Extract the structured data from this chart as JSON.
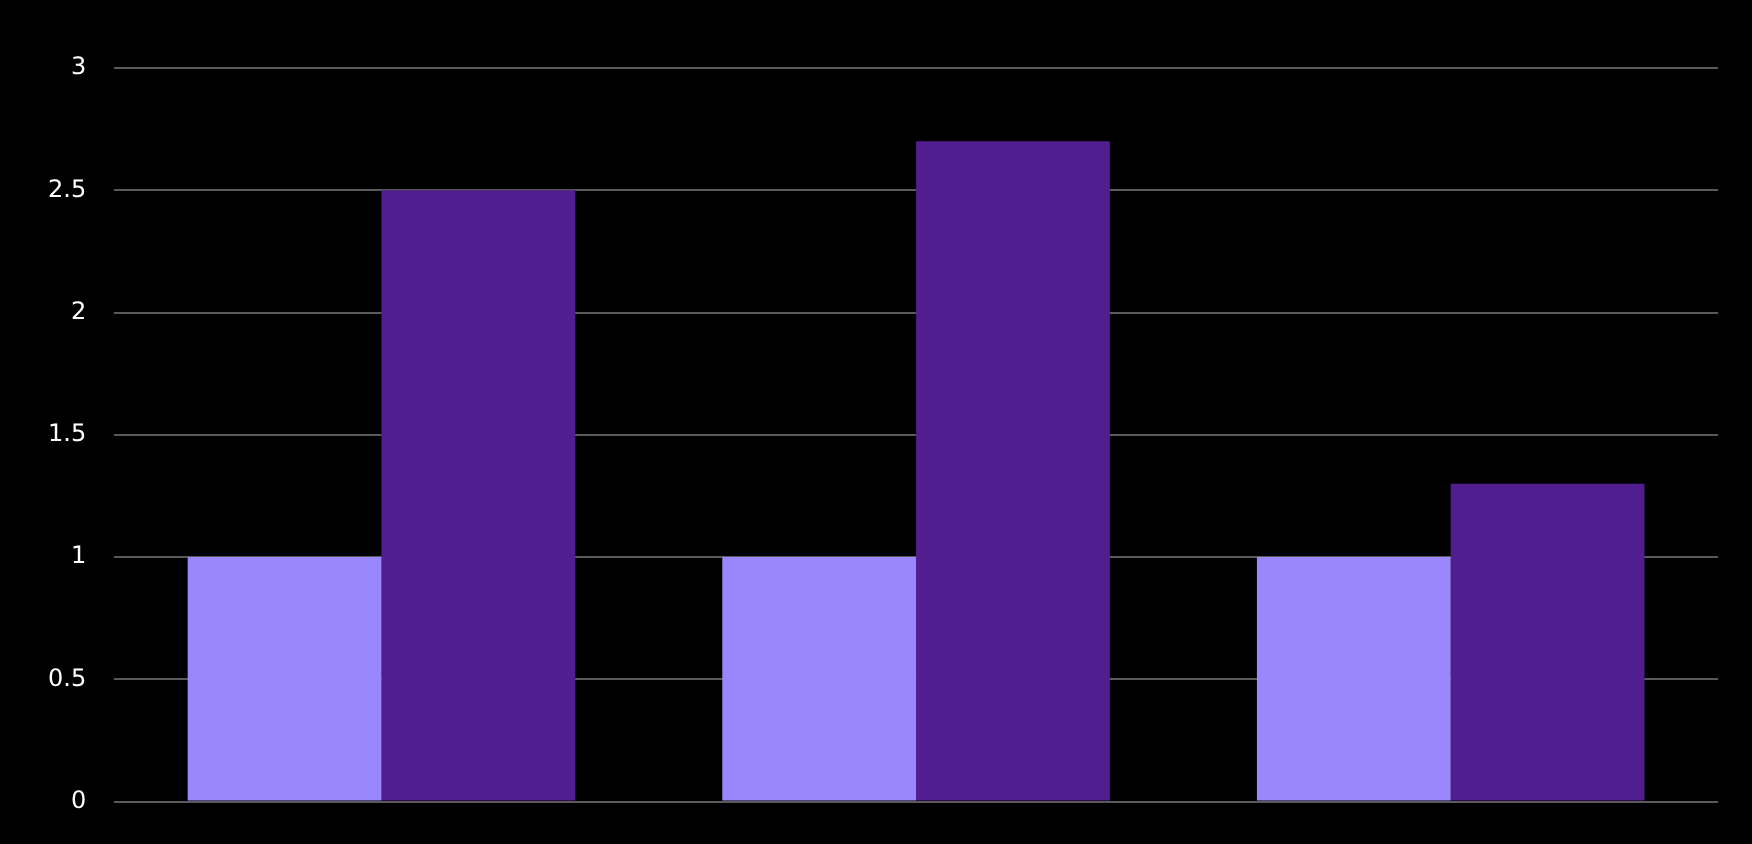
{
  "chart_data": {
    "type": "bar",
    "categories": [
      null,
      null,
      null
    ],
    "series": [
      {
        "color": "#9b87fd",
        "values": [
          1,
          1,
          1
        ]
      },
      {
        "color": "#521d8f",
        "values": [
          2.5,
          2.7,
          1.3
        ]
      }
    ],
    "ylim": [
      0,
      3
    ],
    "yticks": [
      0,
      0.5,
      1,
      1.5,
      2,
      2.5,
      3
    ],
    "grid": "y"
  }
}
